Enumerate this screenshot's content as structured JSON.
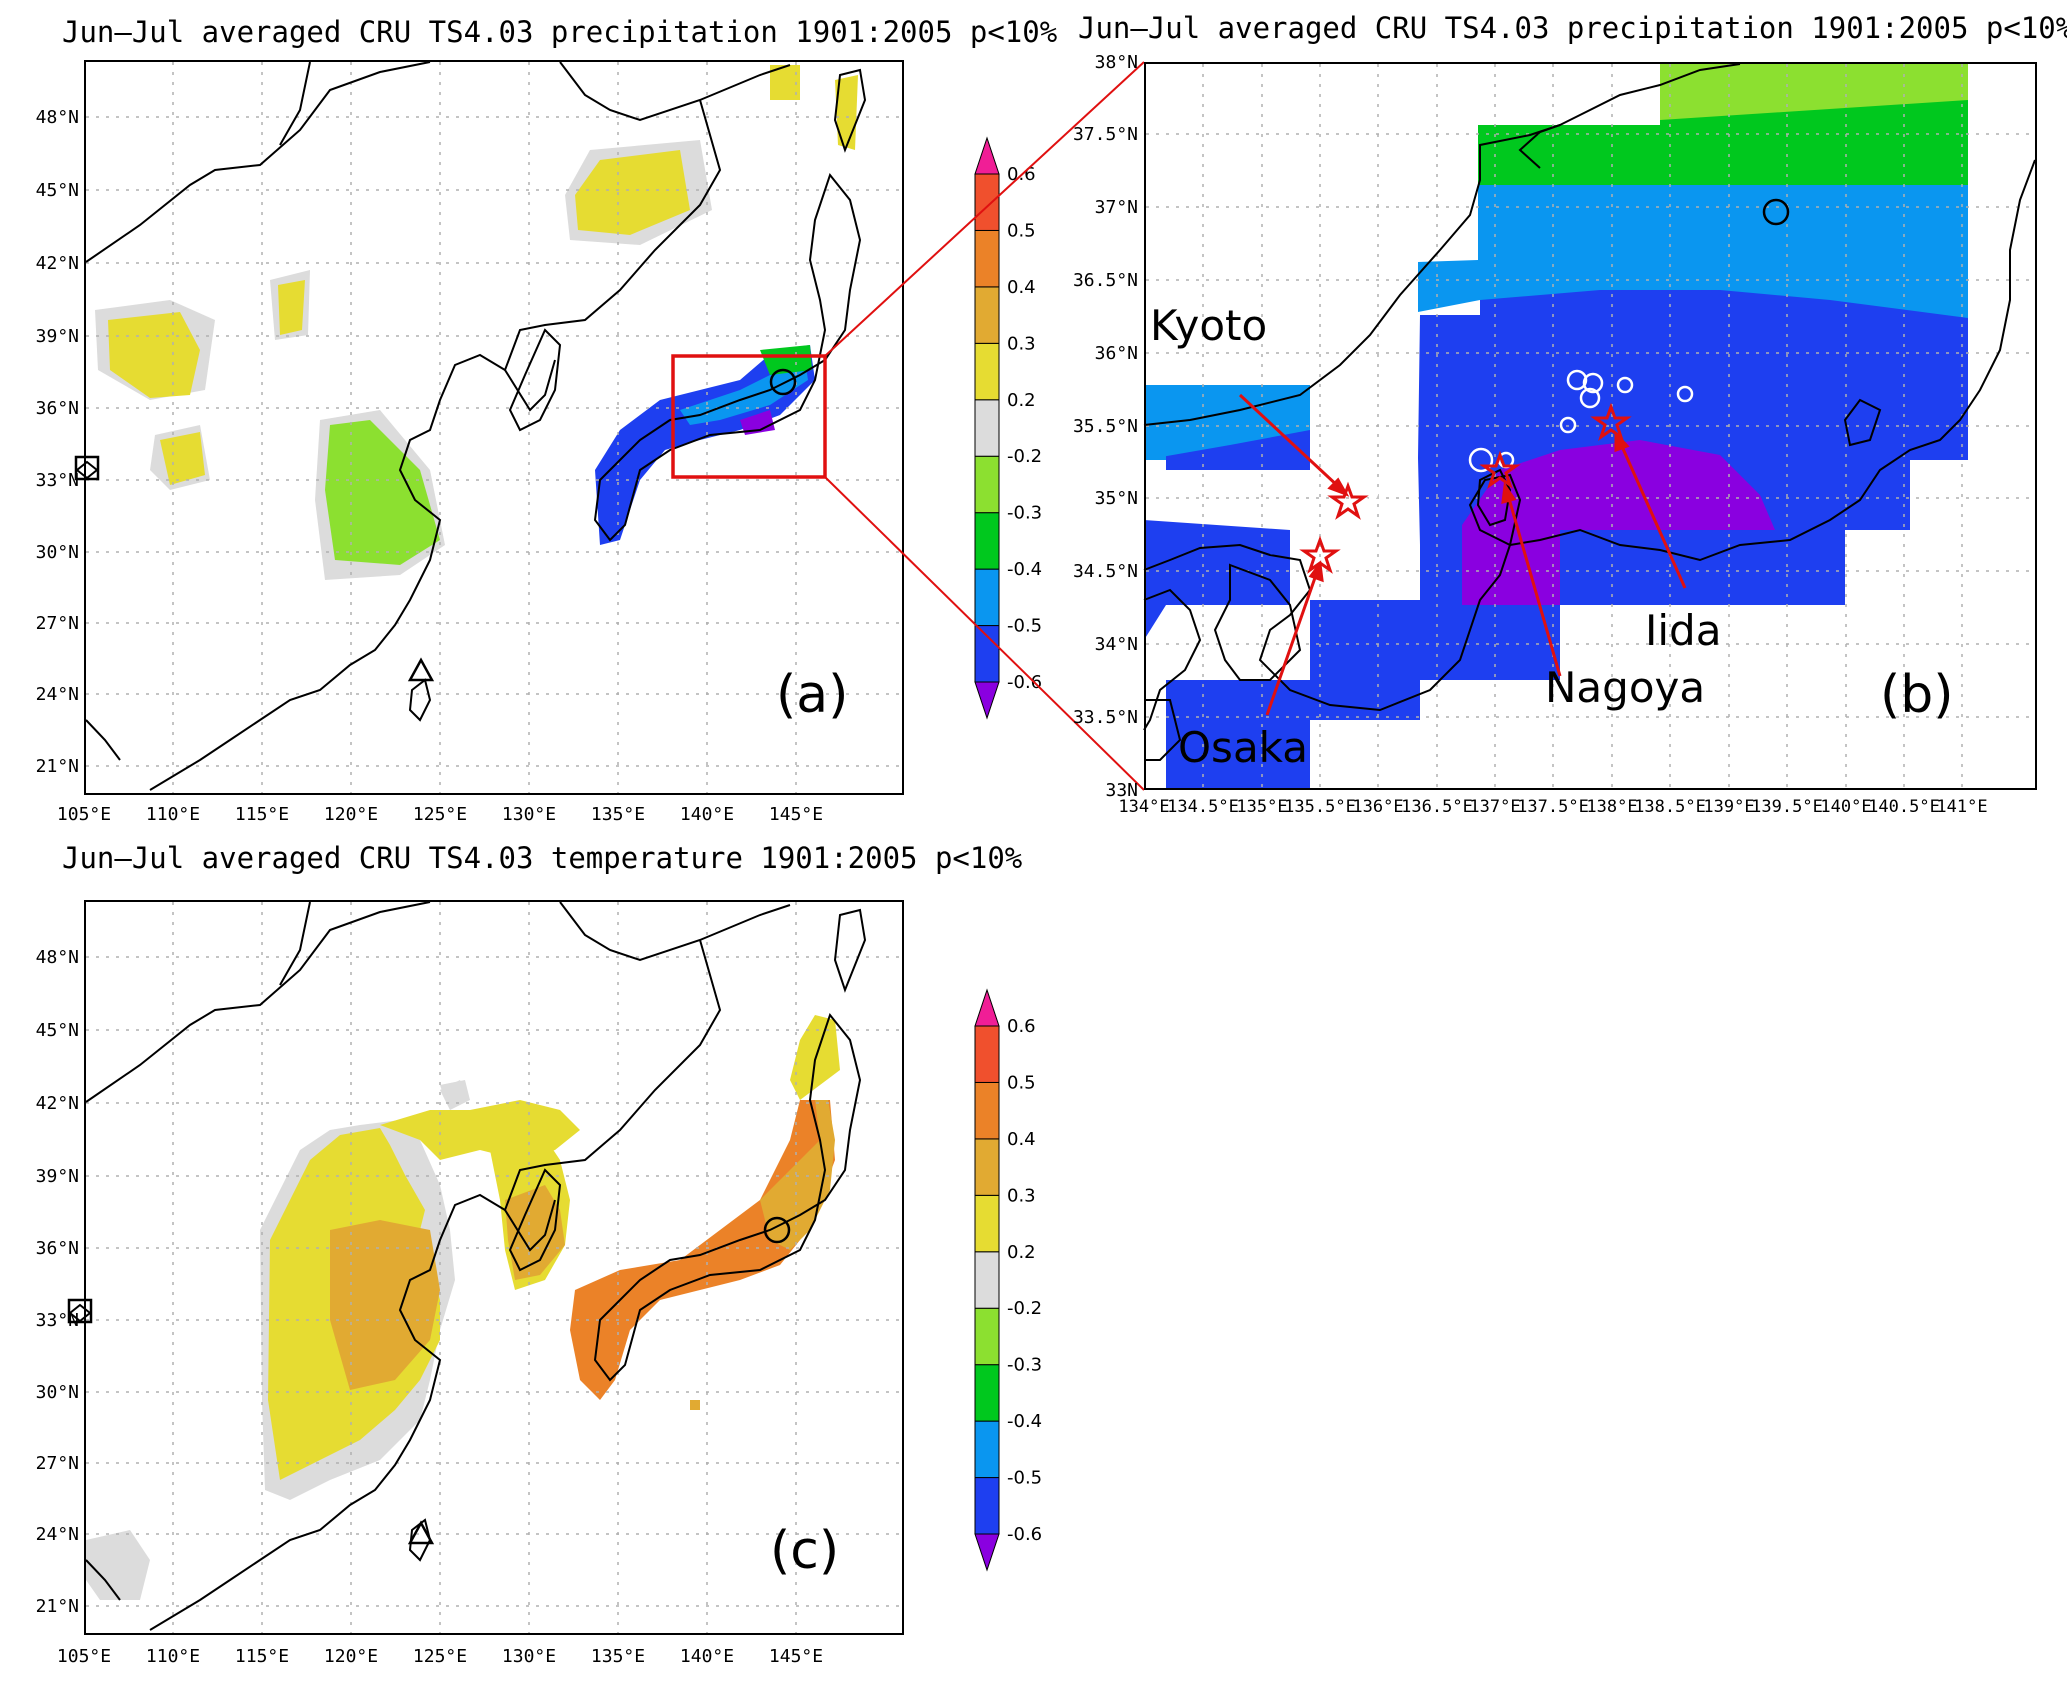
{
  "colors": {
    "levels": [
      "#8a00e0",
      "#1e3ff0",
      "#0a96f0",
      "#00c81e",
      "#8ce030",
      "#dcdcdc",
      "#e6dc32",
      "#e1aa32",
      "#eb8228",
      "#f0502d",
      "#f01e96"
    ]
  },
  "colorbar": {
    "ticks": [
      "-0.6",
      "-0.5",
      "-0.4",
      "-0.3",
      "-0.2",
      "0.2",
      "0.3",
      "0.4",
      "0.5",
      "0.6"
    ]
  },
  "panel_a": {
    "title": "Jun–Jul averaged CRU TS4.03 precipitation 1901:2005 p<10%",
    "label": "(a)",
    "lon_ticks": [
      "105°E",
      "110°E",
      "115°E",
      "120°E",
      "125°E",
      "130°E",
      "135°E",
      "140°E",
      "145°E"
    ],
    "lat_ticks": [
      "21°N",
      "24°N",
      "27°N",
      "30°N",
      "33°N",
      "36°N",
      "39°N",
      "42°N",
      "45°N",
      "48°N"
    ],
    "zoom_box_color": "#e01010"
  },
  "panel_b": {
    "title": "Jun–Jul averaged CRU TS4.03 precipitation 1901:2005 p<10%",
    "label": "(b)",
    "lon_ticks": [
      "134°E",
      "134.5°E",
      "135°E",
      "135.5°E",
      "136°E",
      "136.5°E",
      "137°E",
      "137.5°E",
      "138°E",
      "138.5°E",
      "139°E",
      "139.5°E",
      "140°E",
      "140.5°E",
      "141°E"
    ],
    "lat_ticks": [
      "33N",
      "33.5°N",
      "34°N",
      "34.5°N",
      "35°N",
      "35.5°N",
      "36°N",
      "36.5°N",
      "37°N",
      "37.5°N",
      "38°N"
    ],
    "cities": [
      {
        "name": "Kyoto",
        "lon": 135.75,
        "lat": 35.01
      },
      {
        "name": "Osaka",
        "lon": 135.5,
        "lat": 34.69
      },
      {
        "name": "Nagoya",
        "lon": 136.9,
        "lat": 35.18
      },
      {
        "name": "Iida",
        "lon": 137.82,
        "lat": 35.51
      }
    ],
    "marker_color": "#e01010"
  },
  "panel_c": {
    "title": "Jun–Jul averaged CRU TS4.03 temperature 1901:2005 p<10%",
    "label": "(c)",
    "lon_ticks": [
      "105°E",
      "110°E",
      "115°E",
      "120°E",
      "125°E",
      "130°E",
      "135°E",
      "140°E",
      "145°E"
    ],
    "lat_ticks": [
      "21°N",
      "24°N",
      "27°N",
      "30°N",
      "33°N",
      "36°N",
      "39°N",
      "42°N",
      "45°N",
      "48°N"
    ]
  }
}
